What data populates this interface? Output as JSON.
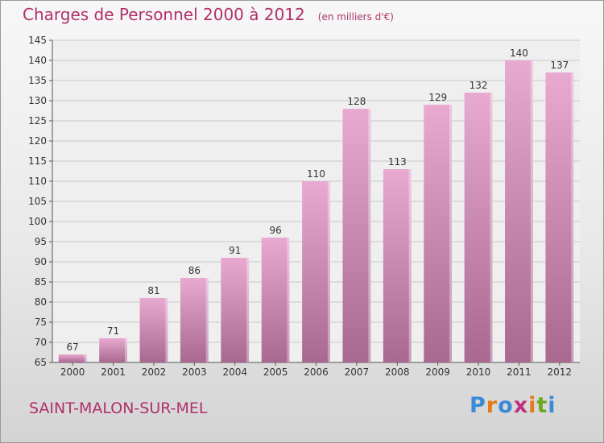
{
  "header": {
    "title": "Charges de Personnel 2000 à 2012",
    "unit": "(en milliers d'€)"
  },
  "footer": {
    "city": "SAINT-MALON-SUR-MEL",
    "brand": "Proxiti"
  },
  "colors": {
    "title": "#b0306a",
    "bar_top": "#e8aad0",
    "bar_bottom": "#a86890",
    "brand_letters": [
      "#3a8ad8",
      "#e07a1a",
      "#3a8ad8",
      "#c03080",
      "#e07a1a",
      "#6aa820",
      "#3a8ad8"
    ]
  },
  "chart_data": {
    "type": "bar",
    "title": "Charges de Personnel 2000 à 2012",
    "subtitle": "(en milliers d'€)",
    "xlabel": "",
    "ylabel": "",
    "categories": [
      "2000",
      "2001",
      "2002",
      "2003",
      "2004",
      "2005",
      "2006",
      "2007",
      "2008",
      "2009",
      "2010",
      "2011",
      "2012"
    ],
    "values": [
      67,
      71,
      81,
      86,
      91,
      96,
      110,
      128,
      113,
      129,
      132,
      140,
      137
    ],
    "ylim": [
      65,
      145
    ],
    "yticks": [
      65,
      70,
      75,
      80,
      85,
      90,
      95,
      100,
      105,
      110,
      115,
      120,
      125,
      130,
      135,
      140,
      145
    ],
    "grid": true,
    "legend": "none"
  }
}
